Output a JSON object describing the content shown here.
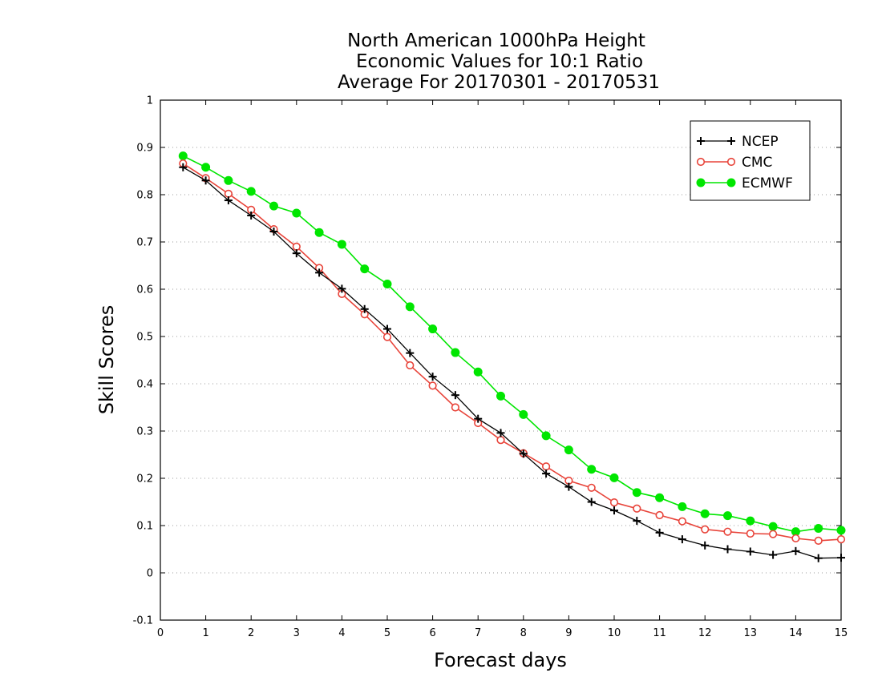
{
  "chart_data": {
    "type": "line",
    "title": [
      "North American 1000hPa Height",
      "Economic Values for 10:1 Ratio",
      "Average For 20170301 - 20170531"
    ],
    "xlabel": "Forecast days",
    "ylabel": "Skill Scores",
    "xlim": [
      0,
      15
    ],
    "ylim": [
      -0.1,
      1
    ],
    "x_ticks": [
      "0",
      "1",
      "2",
      "3",
      "4",
      "5",
      "6",
      "7",
      "8",
      "9",
      "10",
      "11",
      "12",
      "13",
      "14",
      "15"
    ],
    "y_ticks": [
      "-0.1",
      "0",
      "0.1",
      "0.2",
      "0.3",
      "0.4",
      "0.5",
      "0.6",
      "0.7",
      "0.8",
      "0.9",
      "1"
    ],
    "grid": true,
    "legend_position": "top-right",
    "x": [
      0.5,
      1,
      1.5,
      2,
      2.5,
      3,
      3.5,
      4,
      4.5,
      5,
      5.5,
      6,
      6.5,
      7,
      7.5,
      8,
      8.5,
      9,
      9.5,
      10,
      10.5,
      11,
      11.5,
      12,
      12.5,
      13,
      13.5,
      14,
      14.5,
      15
    ],
    "series": [
      {
        "name": "NCEP",
        "color": "#000000",
        "marker": "plus",
        "values": [
          0.858,
          0.83,
          0.788,
          0.756,
          0.722,
          0.676,
          0.635,
          0.601,
          0.558,
          0.516,
          0.465,
          0.415,
          0.376,
          0.326,
          0.296,
          0.252,
          0.21,
          0.182,
          0.15,
          0.132,
          0.11,
          0.085,
          0.071,
          0.058,
          0.05,
          0.045,
          0.038,
          0.046,
          0.031,
          0.032
        ]
      },
      {
        "name": "CMC",
        "color": "#e8443a",
        "marker": "open-circle",
        "values": [
          0.866,
          0.835,
          0.802,
          0.768,
          0.727,
          0.69,
          0.645,
          0.59,
          0.547,
          0.499,
          0.439,
          0.396,
          0.35,
          0.317,
          0.281,
          0.253,
          0.225,
          0.195,
          0.18,
          0.149,
          0.136,
          0.122,
          0.109,
          0.092,
          0.087,
          0.083,
          0.082,
          0.073,
          0.068,
          0.071
        ]
      },
      {
        "name": "ECMWF",
        "color": "#00e600",
        "marker": "filled-circle",
        "values": [
          0.882,
          0.858,
          0.83,
          0.807,
          0.776,
          0.761,
          0.72,
          0.695,
          0.643,
          0.611,
          0.563,
          0.516,
          0.466,
          0.425,
          0.374,
          0.335,
          0.29,
          0.26,
          0.219,
          0.201,
          0.17,
          0.159,
          0.14,
          0.125,
          0.121,
          0.11,
          0.098,
          0.087,
          0.094,
          0.09
        ]
      }
    ]
  }
}
